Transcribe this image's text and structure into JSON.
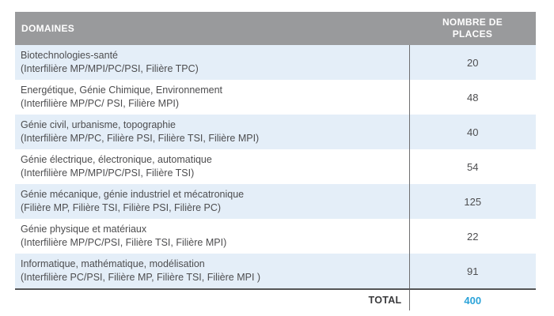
{
  "table": {
    "headers": {
      "domaines": "DOMAINES",
      "places_line1": "NOMBRE DE",
      "places_line2": "PLACES"
    },
    "rows": [
      {
        "domain": "Biotechnologies-santé",
        "filieres": "(Interfilière MP/MPI/PC/PSI, Filière TPC)",
        "places": "20"
      },
      {
        "domain": "Energétique, Génie Chimique, Environnement",
        "filieres": "(Interfilière MP/PC/ PSI, Filière MPI)",
        "places": "48"
      },
      {
        "domain": "Génie civil, urbanisme, topographie",
        "filieres": "(Interfilière MP/PC, Filière PSI, Filière TSI, Filière MPI)",
        "places": "40"
      },
      {
        "domain": "Génie électrique, électronique, automatique",
        "filieres": "(Interfilière MP/MPI/PC/PSI, Filière TSI)",
        "places": "54"
      },
      {
        "domain": "Génie mécanique, génie industriel et mécatronique",
        "filieres": "(Filière MP, Filière TSI, Filière PSI, Filière PC)",
        "places": "125"
      },
      {
        "domain": "Génie physique et matériaux",
        "filieres": "(Interfilière MP/PC/PSI, Filière TSI, Filière MPI)",
        "places": "22"
      },
      {
        "domain": "Informatique, mathématique, modélisation",
        "filieres": " (Interfilière PC/PSI, Filière MP, Filière TSI, Filière MPI )",
        "places": "91"
      }
    ],
    "total_label": "TOTAL",
    "total_value": "400"
  },
  "colors": {
    "header_bg": "#999a9c",
    "row_alt_bg": "#e4eef8",
    "total_accent": "#2ba3d9"
  }
}
